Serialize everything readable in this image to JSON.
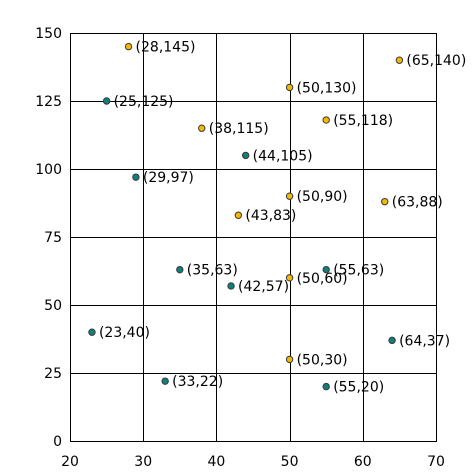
{
  "chart_data": {
    "type": "scatter",
    "title": "",
    "xlabel": "",
    "ylabel": "",
    "xlim": [
      20,
      70
    ],
    "ylim": [
      0,
      150
    ],
    "xticks": [
      20,
      30,
      40,
      50,
      60,
      70
    ],
    "yticks": [
      0,
      25,
      50,
      75,
      100,
      125,
      150
    ],
    "grid": true,
    "series": [
      {
        "color": "#f5b800",
        "points": [
          {
            "x": 28,
            "y": 145,
            "label": "(28,145)"
          },
          {
            "x": 65,
            "y": 140,
            "label": "(65,140)"
          },
          {
            "x": 50,
            "y": 130,
            "label": "(50,130)"
          },
          {
            "x": 38,
            "y": 115,
            "label": "(38,115)"
          },
          {
            "x": 55,
            "y": 118,
            "label": "(55,118)"
          },
          {
            "x": 50,
            "y": 90,
            "label": "(50,90)"
          },
          {
            "x": 63,
            "y": 88,
            "label": "(63,88)"
          },
          {
            "x": 43,
            "y": 83,
            "label": "(43,83)"
          },
          {
            "x": 50,
            "y": 60,
            "label": "(50,60)"
          },
          {
            "x": 50,
            "y": 30,
            "label": "(50,30)"
          }
        ]
      },
      {
        "color": "#0f7f7a",
        "points": [
          {
            "x": 25,
            "y": 125,
            "label": "(25,125)"
          },
          {
            "x": 44,
            "y": 105,
            "label": "(44,105)"
          },
          {
            "x": 29,
            "y": 97,
            "label": "(29,97)"
          },
          {
            "x": 35,
            "y": 63,
            "label": "(35,63)"
          },
          {
            "x": 55,
            "y": 63,
            "label": "(55,63)"
          },
          {
            "x": 42,
            "y": 57,
            "label": "(42,57)"
          },
          {
            "x": 23,
            "y": 40,
            "label": "(23,40)"
          },
          {
            "x": 64,
            "y": 37,
            "label": "(64,37)"
          },
          {
            "x": 33,
            "y": 22,
            "label": "(33,22)"
          },
          {
            "x": 55,
            "y": 20,
            "label": "(55,20)"
          }
        ]
      }
    ]
  }
}
